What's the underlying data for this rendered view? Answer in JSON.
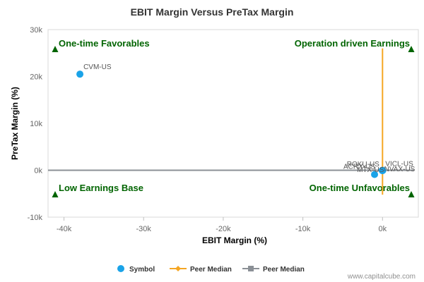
{
  "chart_data": {
    "type": "scatter",
    "title": "EBIT Margin Versus PreTax Margin",
    "xlabel": "EBIT Margin (%)",
    "ylabel": "PreTax Margin (%)",
    "xlim": [
      -42000,
      4500
    ],
    "ylim": [
      -10000,
      30000
    ],
    "x_ticks": [
      -40000,
      -30000,
      -20000,
      -10000,
      0
    ],
    "x_tick_labels": [
      "-40k",
      "-30k",
      "-20k",
      "-10k",
      "0k"
    ],
    "y_ticks": [
      -10000,
      0,
      10000,
      20000,
      30000
    ],
    "y_tick_labels": [
      "-10k",
      "0k",
      "10k",
      "20k",
      "30k"
    ],
    "grid": false,
    "legend_position": "bottom",
    "legend": [
      {
        "label": "Symbol",
        "marker": "circle",
        "color": "#1aa3e8"
      },
      {
        "label": "Peer Median",
        "marker": "diamond-line",
        "color": "#f5a623"
      },
      {
        "label": "Peer Median",
        "marker": "square-line",
        "color": "#8b9096"
      }
    ],
    "points": [
      {
        "label": "CVM-US",
        "x": -38000,
        "y": 20500
      },
      {
        "label": "ACRX-US",
        "x": -1000,
        "y": -900
      },
      {
        "label": "ROKU-US",
        "x": -50,
        "y": -40
      },
      {
        "label": "VICL-US",
        "x": 0,
        "y": 0
      },
      {
        "label": "NVAX-US",
        "x": 30,
        "y": -60
      },
      {
        "label": "MTX-US",
        "x": -20,
        "y": -80
      }
    ],
    "peer_median_x": 0,
    "peer_median_y": 0,
    "quadrants": {
      "top_left": "One-time Favorables",
      "top_right": "Operation driven Earnings",
      "bottom_left": "Low Earnings Base",
      "bottom_right": "One-time Unfavorables"
    },
    "colors": {
      "point": "#1aa3e8",
      "median_x_line": "#f5a623",
      "median_y_line": "#8b9096",
      "quadrant_text": "#006400"
    }
  },
  "credit": "www.capitalcube.com"
}
